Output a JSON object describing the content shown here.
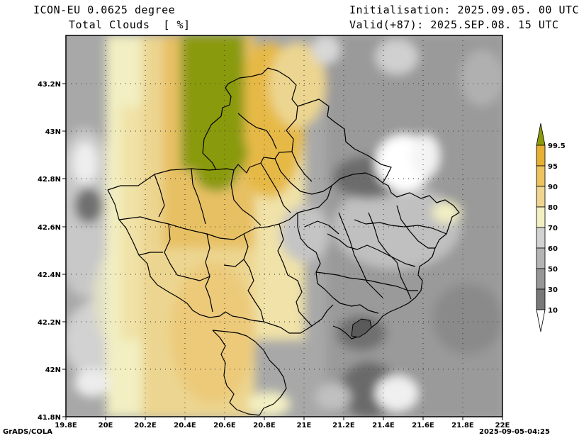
{
  "header": {
    "model": "ICON-EU 0.0625 degree",
    "variable": "Total Clouds  [ %]",
    "init": "Initialisation: 2025.09.05. 00 UTC",
    "valid": "Valid(+87): 2025.SEP.08. 15 UTC"
  },
  "footer": {
    "credit": "GrADS/COLA",
    "timestamp": "2025-09-05-04:25"
  },
  "axes": {
    "x_ticks": [
      "19.8E",
      "20E",
      "20.2E",
      "20.4E",
      "20.6E",
      "20.8E",
      "21E",
      "21.2E",
      "21.4E",
      "21.6E",
      "21.8E",
      "22E"
    ],
    "y_ticks": [
      "41.8N",
      "42N",
      "42.2N",
      "42.4N",
      "42.6N",
      "42.8N",
      "43N",
      "43.2N"
    ]
  },
  "colorbar": {
    "labels": [
      "99.5",
      "95",
      "90",
      "80",
      "70",
      "60",
      "50",
      "30",
      "10"
    ],
    "colors": [
      "#8a9a0a",
      "#e6b032",
      "#ecc35e",
      "#f0d591",
      "#f2efc2",
      "#d2d2d2",
      "#b4b4b4",
      "#969696",
      "#787878",
      "#5a5a5a",
      "#ffffff"
    ]
  }
}
